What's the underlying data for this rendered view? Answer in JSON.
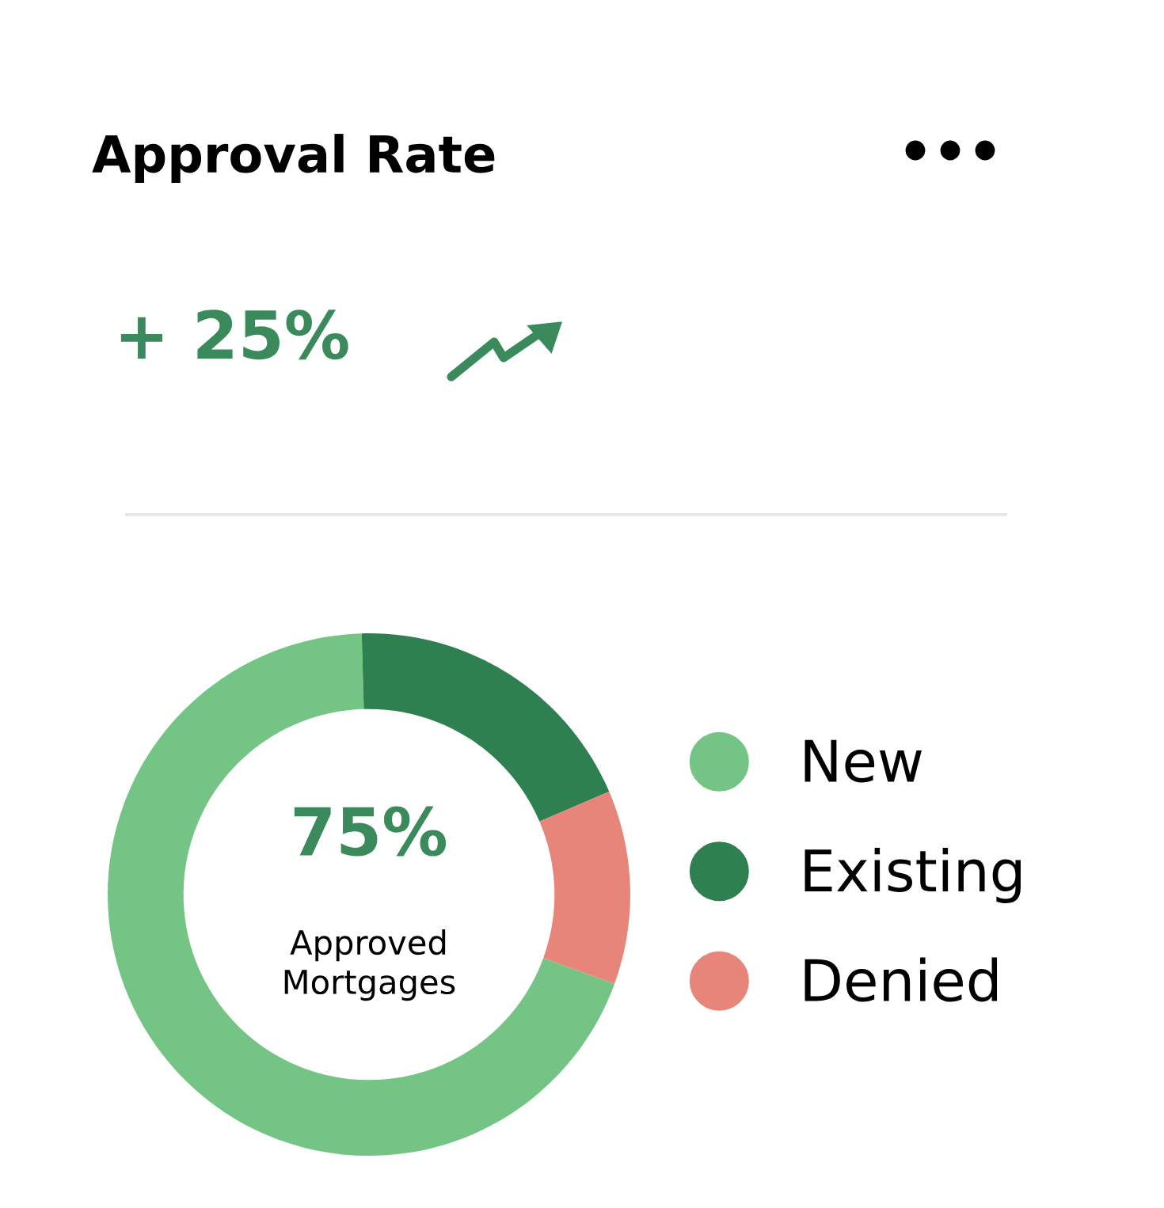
{
  "chart_data": {
    "type": "donut",
    "title": "Approval Rate",
    "categories": [
      "New",
      "Existing",
      "Denied"
    ],
    "values": [
      69,
      19,
      12
    ],
    "colors": [
      "#74c585",
      "#2e8050",
      "#e8857a"
    ],
    "legend": "right",
    "annotations": [
      "+ 25%",
      "75%",
      "Approved\nMortgages"
    ]
  }
}
